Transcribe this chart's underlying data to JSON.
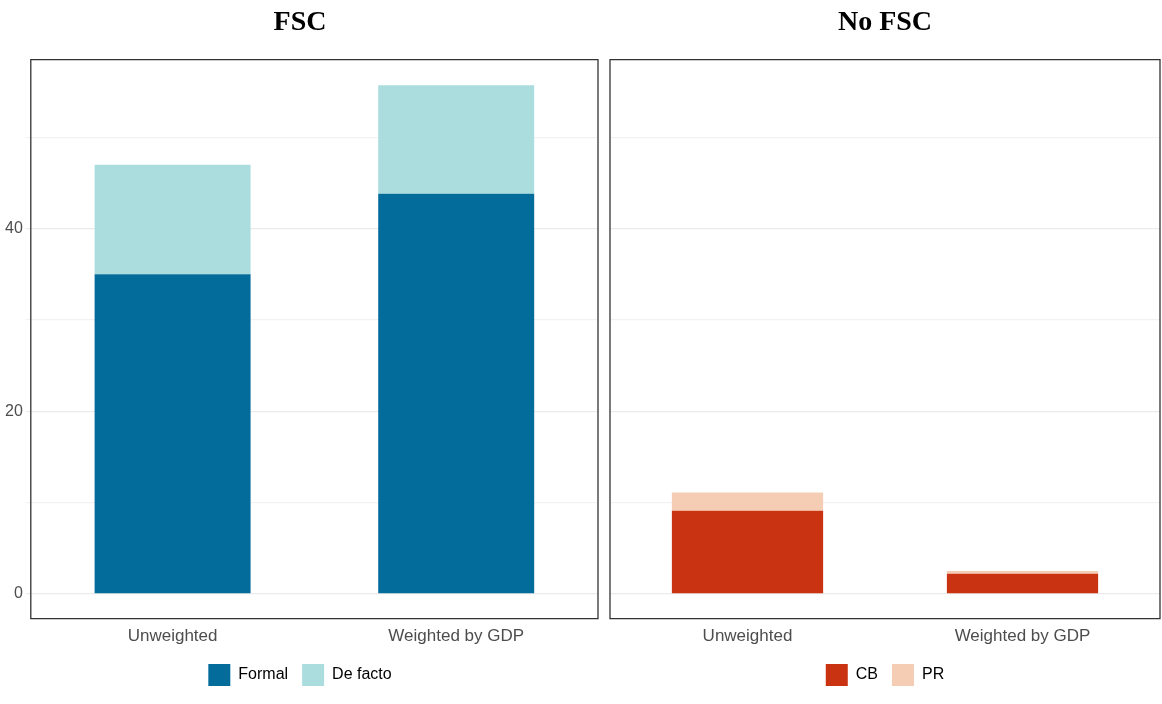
{
  "chart_data": [
    {
      "type": "bar",
      "title": "FSC",
      "categories": [
        "Unweighted",
        "Weighted by GDP"
      ],
      "stacked": true,
      "series": [
        {
          "name": "Formal",
          "color": "#046c9a",
          "values": [
            35,
            43.8
          ]
        },
        {
          "name": "De facto",
          "color": "#abddde",
          "values": [
            12,
            11.9
          ]
        }
      ],
      "ylim": [
        -2.7,
        58.5
      ],
      "yticks": [
        0,
        {
          "value": 10,
          "label": null
        },
        20,
        {
          "value": 30,
          "label": null
        },
        40,
        {
          "value": 50,
          "label": null
        }
      ],
      "grid": "y",
      "legend": "bottom"
    },
    {
      "type": "bar",
      "title": "No FSC",
      "categories": [
        "Unweighted",
        "Weighted by GDP"
      ],
      "stacked": true,
      "series": [
        {
          "name": "CB",
          "color": "#c93312",
          "values": [
            9.1,
            2.2
          ]
        },
        {
          "name": "PR",
          "color": "#f4cdb4",
          "values": [
            2,
            0.3
          ]
        }
      ],
      "ylim": [
        -2.7,
        58.5
      ],
      "yticks": [
        0,
        {
          "value": 10,
          "label": null
        },
        20,
        {
          "value": 30,
          "label": null
        },
        40,
        {
          "value": 50,
          "label": null
        }
      ],
      "grid": "y",
      "legend": "bottom",
      "tick_labels": "x"
    }
  ]
}
